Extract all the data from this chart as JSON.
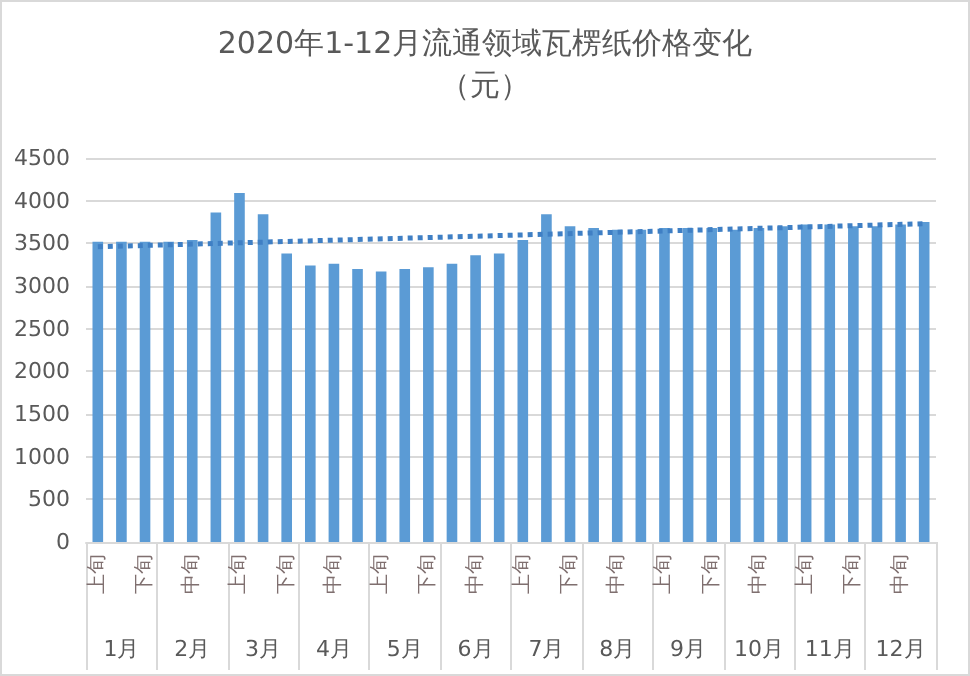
{
  "chart_data": {
    "type": "bar",
    "title": "2020年1-12月流通领域瓦楞纸价格变化",
    "subtitle": "（元）",
    "categories": [
      "上旬",
      null,
      "下旬",
      null,
      "中旬",
      null,
      "上旬",
      null,
      "下旬",
      null,
      "中旬",
      null,
      "上旬",
      null,
      "下旬",
      null,
      "中旬",
      null,
      "上旬",
      null,
      "下旬",
      null,
      "中旬",
      null,
      "上旬",
      null,
      "下旬",
      null,
      "中旬",
      null,
      "上旬",
      null,
      "下旬",
      null,
      "中旬",
      null
    ],
    "series": [
      {
        "color": "#5b9bd5",
        "values": [
          3520,
          3520,
          3520,
          3520,
          3540,
          3860,
          4090,
          3840,
          3380,
          3240,
          3260,
          3200,
          3170,
          3200,
          3220,
          3260,
          3360,
          3380,
          3540,
          3840,
          3700,
          3680,
          3660,
          3660,
          3680,
          3680,
          3680,
          3660,
          3680,
          3700,
          3720,
          3720,
          3700,
          3700,
          3720,
          3750
        ]
      },
      {
        "type": "line",
        "color": "#3f7fc4",
        "line_style": "dotted",
        "values": [
          3460,
          null,
          null,
          null,
          null,
          null,
          null,
          null,
          null,
          null,
          null,
          null,
          null,
          null,
          null,
          null,
          null,
          null,
          null,
          null,
          null,
          null,
          null,
          null,
          null,
          null,
          null,
          null,
          null,
          null,
          null,
          null,
          null,
          null,
          null,
          3730
        ]
      }
    ],
    "annotations": [
      "1月",
      "2月",
      "3月",
      "4月",
      "5月",
      "6月",
      "7月",
      "8月",
      "9月",
      "10月",
      "11月",
      "12月"
    ],
    "ylim": [
      0,
      4500
    ],
    "yticks": [
      0,
      500,
      1000,
      1500,
      2000,
      2500,
      3000,
      3500,
      4000,
      4500
    ],
    "grid": "y"
  }
}
